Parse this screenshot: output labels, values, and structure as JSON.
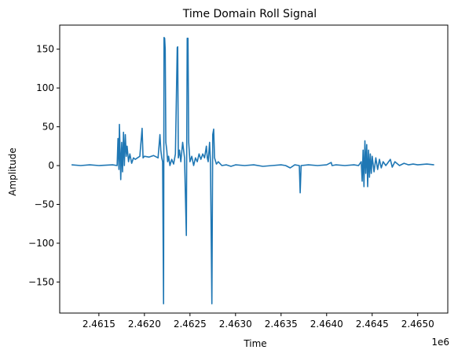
{
  "chart_data": {
    "type": "line",
    "title": "Time Domain Roll Signal",
    "xlabel": "Time",
    "ylabel": "Amplitude",
    "x_offset_label": "1e6",
    "xlim": [
      2461070,
      2465330
    ],
    "ylim": [
      -190,
      181
    ],
    "x_ticks": [
      2461500,
      2462000,
      2462500,
      2463000,
      2463500,
      2464000,
      2464500,
      2465000
    ],
    "x_tick_labels": [
      "2.4615",
      "2.4620",
      "2.4625",
      "2.4630",
      "2.4635",
      "2.4640",
      "2.4645",
      "2.4650"
    ],
    "y_ticks": [
      -150,
      -100,
      -50,
      0,
      50,
      100,
      150
    ],
    "y_tick_labels": [
      "−150",
      "−100",
      "−50",
      "0",
      "50",
      "100",
      "150"
    ],
    "grid": false,
    "legend": "none",
    "series": [
      {
        "color": "#1f77b4",
        "points": [
          [
            2461200,
            1
          ],
          [
            2461300,
            0
          ],
          [
            2461400,
            1
          ],
          [
            2461500,
            0
          ],
          [
            2461650,
            1
          ],
          [
            2461700,
            0
          ],
          [
            2461710,
            35
          ],
          [
            2461720,
            -5
          ],
          [
            2461725,
            53
          ],
          [
            2461735,
            10
          ],
          [
            2461740,
            -18
          ],
          [
            2461750,
            30
          ],
          [
            2461760,
            -8
          ],
          [
            2461770,
            43
          ],
          [
            2461780,
            0
          ],
          [
            2461790,
            40
          ],
          [
            2461800,
            12
          ],
          [
            2461810,
            25
          ],
          [
            2461825,
            5
          ],
          [
            2461840,
            15
          ],
          [
            2461860,
            3
          ],
          [
            2461880,
            10
          ],
          [
            2461900,
            8
          ],
          [
            2461950,
            12
          ],
          [
            2461975,
            48
          ],
          [
            2461985,
            10
          ],
          [
            2462000,
            12
          ],
          [
            2462050,
            11
          ],
          [
            2462100,
            13
          ],
          [
            2462150,
            10
          ],
          [
            2462170,
            40
          ],
          [
            2462180,
            20
          ],
          [
            2462190,
            10
          ],
          [
            2462200,
            5
          ],
          [
            2462210,
            -178
          ],
          [
            2462215,
            165
          ],
          [
            2462222,
            164
          ],
          [
            2462228,
            150
          ],
          [
            2462235,
            30
          ],
          [
            2462245,
            20
          ],
          [
            2462255,
            5
          ],
          [
            2462265,
            12
          ],
          [
            2462280,
            0
          ],
          [
            2462300,
            8
          ],
          [
            2462320,
            2
          ],
          [
            2462340,
            15
          ],
          [
            2462360,
            152
          ],
          [
            2462365,
            153
          ],
          [
            2462372,
            10
          ],
          [
            2462385,
            20
          ],
          [
            2462400,
            5
          ],
          [
            2462420,
            30
          ],
          [
            2462440,
            10
          ],
          [
            2462460,
            -90
          ],
          [
            2462470,
            164
          ],
          [
            2462478,
            164
          ],
          [
            2462486,
            30
          ],
          [
            2462500,
            5
          ],
          [
            2462520,
            12
          ],
          [
            2462540,
            0
          ],
          [
            2462560,
            10
          ],
          [
            2462580,
            5
          ],
          [
            2462600,
            15
          ],
          [
            2462620,
            8
          ],
          [
            2462640,
            15
          ],
          [
            2462660,
            10
          ],
          [
            2462680,
            25
          ],
          [
            2462690,
            10
          ],
          [
            2462700,
            5
          ],
          [
            2462715,
            30
          ],
          [
            2462725,
            5
          ],
          [
            2462740,
            -178
          ],
          [
            2462750,
            40
          ],
          [
            2462760,
            47
          ],
          [
            2462770,
            10
          ],
          [
            2462790,
            2
          ],
          [
            2462810,
            5
          ],
          [
            2462850,
            0
          ],
          [
            2462900,
            1
          ],
          [
            2462950,
            -1
          ],
          [
            2463000,
            1
          ],
          [
            2463100,
            0
          ],
          [
            2463200,
            1
          ],
          [
            2463300,
            -1
          ],
          [
            2463400,
            0
          ],
          [
            2463500,
            1
          ],
          [
            2463550,
            0
          ],
          [
            2463600,
            -3
          ],
          [
            2463650,
            1
          ],
          [
            2463700,
            0
          ],
          [
            2463710,
            -35
          ],
          [
            2463720,
            0
          ],
          [
            2463800,
            1
          ],
          [
            2463900,
            0
          ],
          [
            2464000,
            1
          ],
          [
            2464050,
            4
          ],
          [
            2464060,
            0
          ],
          [
            2464100,
            1
          ],
          [
            2464200,
            0
          ],
          [
            2464300,
            1
          ],
          [
            2464350,
            0
          ],
          [
            2464380,
            5
          ],
          [
            2464390,
            -20
          ],
          [
            2464400,
            20
          ],
          [
            2464410,
            -27
          ],
          [
            2464420,
            32
          ],
          [
            2464430,
            -10
          ],
          [
            2464440,
            27
          ],
          [
            2464450,
            -27
          ],
          [
            2464460,
            20
          ],
          [
            2464470,
            -15
          ],
          [
            2464480,
            15
          ],
          [
            2464490,
            -10
          ],
          [
            2464500,
            12
          ],
          [
            2464520,
            -8
          ],
          [
            2464540,
            10
          ],
          [
            2464560,
            -5
          ],
          [
            2464580,
            8
          ],
          [
            2464600,
            -3
          ],
          [
            2464620,
            5
          ],
          [
            2464650,
            0
          ],
          [
            2464700,
            8
          ],
          [
            2464720,
            -2
          ],
          [
            2464750,
            5
          ],
          [
            2464800,
            0
          ],
          [
            2464850,
            3
          ],
          [
            2464900,
            1
          ],
          [
            2464950,
            2
          ],
          [
            2465000,
            1
          ],
          [
            2465100,
            2
          ],
          [
            2465180,
            1
          ]
        ]
      }
    ]
  }
}
